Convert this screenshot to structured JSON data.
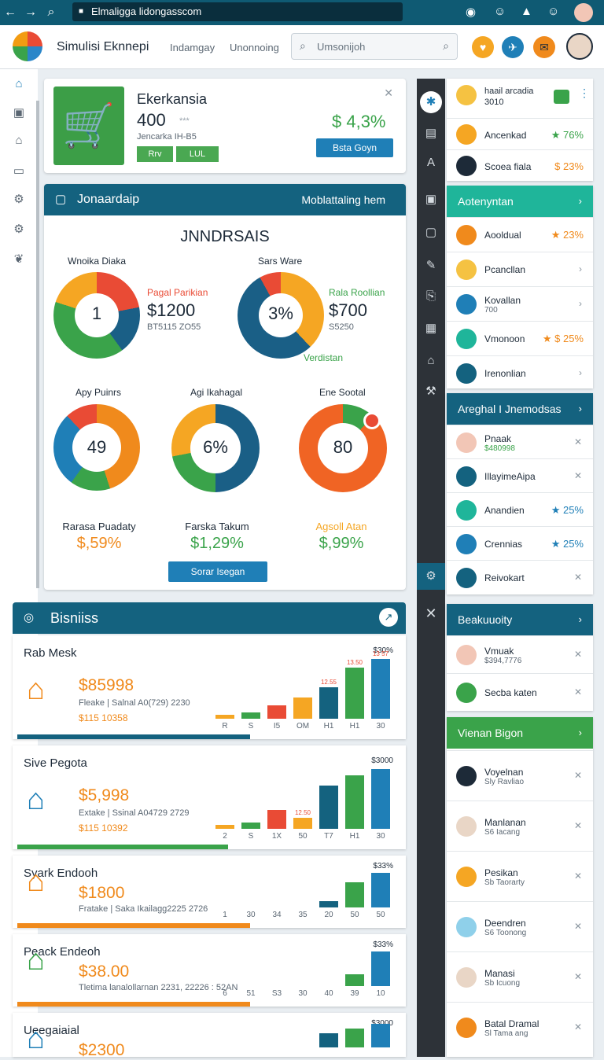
{
  "browser": {
    "url": "Elmaligga lidongasscom"
  },
  "header": {
    "title": "Simulisi Eknnepi",
    "nav": [
      "Indamgay",
      "Unonnoing"
    ],
    "search_placeholder": "Umsonijoh"
  },
  "top_card": {
    "title": "Ekerkansia",
    "value": "400",
    "value_suffix": "***",
    "subtitle": "Jencarka IH-B5",
    "tags": [
      "Rrv",
      "LUL"
    ],
    "percent": "$ 4,3%",
    "button": "Bsta Goyn"
  },
  "panel": {
    "header": "Jonaardaip",
    "header_right": "Moblattaling hem",
    "title": "JNNDRSAIS",
    "donuts": [
      {
        "label": "Wnoika Diaka",
        "center": "1"
      },
      {
        "label": "Sars Ware",
        "center": "3%"
      },
      {
        "label": "Apy Puinrs",
        "center": "49"
      },
      {
        "label": "Agi Ikahagal",
        "center": "6%"
      },
      {
        "label": "Ene Sootal",
        "center": "80"
      }
    ],
    "callout1": {
      "label": "Pagal Parikian",
      "value": "$1200",
      "sub": "BT5115 ZO55"
    },
    "callout2": {
      "label": "Rala Roollian",
      "value": "$700",
      "sub": "S5250",
      "foot": "Verdistan"
    },
    "kpis": [
      {
        "label": "Rarasa Puadaty",
        "value": "$,59%",
        "color": "#f08a1c"
      },
      {
        "label": "Farska Takum",
        "value": "$1,29%",
        "color": "#3aa34a"
      },
      {
        "label": "Agsoll Atan",
        "value": "$,99%",
        "color": "#3aa34a"
      }
    ],
    "button": "Sorar Isegan"
  },
  "business": {
    "header": "Bisniiss",
    "items": [
      {
        "name": "Rab Mesk",
        "price": "$85998",
        "desc": "Fleake | Salnal A0(729) 2230",
        "sub": "$115 10358",
        "top": "$30%",
        "ticks": [
          "R",
          "S",
          "I5",
          "OM",
          "H1",
          "H1",
          "30"
        ],
        "bars": [
          6,
          10,
          22,
          36,
          52,
          85,
          100
        ],
        "bar_labels": [
          "",
          "",
          "",
          "",
          "12.55",
          "13.50",
          "13 57"
        ]
      },
      {
        "name": "Sive Pegota",
        "price": "$5,998",
        "desc": "Extake | Ssinal A04729 2729",
        "sub": "$115 10392",
        "top": "$3000",
        "ticks": [
          "2",
          "S",
          "1X",
          "50",
          "T7",
          "H1",
          "30"
        ],
        "bars": [
          6,
          10,
          32,
          18,
          72,
          90,
          100
        ],
        "bar_labels": [
          "",
          "",
          "",
          "12.50",
          "",
          "",
          ""
        ]
      },
      {
        "name": "Syark Endooh",
        "price": "$1800",
        "desc": "Fratake | Saka Ikailagg2225 2726",
        "sub": "",
        "top": "$33%",
        "ticks": [
          "1",
          "30",
          "34",
          "35",
          "20",
          "50",
          "50"
        ],
        "bars": [
          0,
          0,
          0,
          0,
          18,
          72,
          100
        ],
        "bar_labels": [
          "",
          "",
          "",
          "",
          "",
          "",
          ""
        ]
      },
      {
        "name": "Peack Endeoh",
        "price": "$38.00",
        "desc": "Tletima lanalollarnan 2231, 22226 : 52AN",
        "sub": "",
        "top": "$33%",
        "ticks": [
          "6",
          "51",
          "S3",
          "30",
          "40",
          "39",
          "10"
        ],
        "bars": [
          0,
          0,
          0,
          0,
          0,
          35,
          100
        ],
        "bar_labels": [
          "",
          "",
          "",
          "",
          "",
          "",
          ""
        ]
      },
      {
        "name": "Ueegaiaial",
        "price": "$2300",
        "desc": "",
        "sub": "",
        "top": "$3000",
        "ticks": [],
        "bars": [
          0,
          0,
          0,
          0,
          60,
          80,
          100
        ],
        "bar_labels": [
          "",
          "",
          "",
          "",
          "",
          "",
          ""
        ]
      }
    ]
  },
  "right": {
    "profile": {
      "name": "haail arcadia",
      "sub": "3010"
    },
    "top_rows": [
      {
        "label": "Ancenkad",
        "value": "76%"
      },
      {
        "label": "Scoea fiala",
        "value": "$ 23%"
      }
    ],
    "card1": {
      "header": "Aotenyntan",
      "rows": [
        {
          "label": "Aooldual",
          "value": "23%",
          "sub": ""
        },
        {
          "label": "Pcancllan",
          "value": "",
          "sub": ""
        },
        {
          "label": "Kovallan",
          "value": "",
          "sub": "700"
        },
        {
          "label": "Vmonoon",
          "value": "$ 25%",
          "sub": ""
        },
        {
          "label": "Irenonlian",
          "value": "",
          "sub": ""
        }
      ]
    },
    "card2": {
      "header": "Areghal I Jnemodsas",
      "rows": [
        {
          "label": "Pnaak",
          "value": "",
          "sub": "$480998"
        },
        {
          "label": "IllayimeAipa",
          "value": "",
          "sub": ""
        },
        {
          "label": "Anandien",
          "value": "25%",
          "sub": ""
        },
        {
          "label": "Crennias",
          "value": "25%",
          "sub": ""
        },
        {
          "label": "Reivokart",
          "value": "",
          "sub": ""
        }
      ]
    },
    "card3": {
      "header": "Beakuuoity",
      "rows": [
        {
          "label": "Vmuak",
          "sub": "$394,7776"
        },
        {
          "label": "Secba katen",
          "sub": ""
        }
      ]
    },
    "card4": {
      "header": "Vienan Bigon",
      "rows": [
        {
          "label": "Voyelnan",
          "sub": "Sly Ravliao"
        },
        {
          "label": "Manlanan",
          "sub": "S6 Iacang"
        },
        {
          "label": "Pesikan",
          "sub": "Sb Taorarty"
        },
        {
          "label": "Deendren",
          "sub": "S6 Toonong"
        },
        {
          "label": "Manasi",
          "sub": "Sb Icuong"
        },
        {
          "label": "Batal Dramal",
          "sub": "Sl Tama ang"
        }
      ]
    }
  }
}
